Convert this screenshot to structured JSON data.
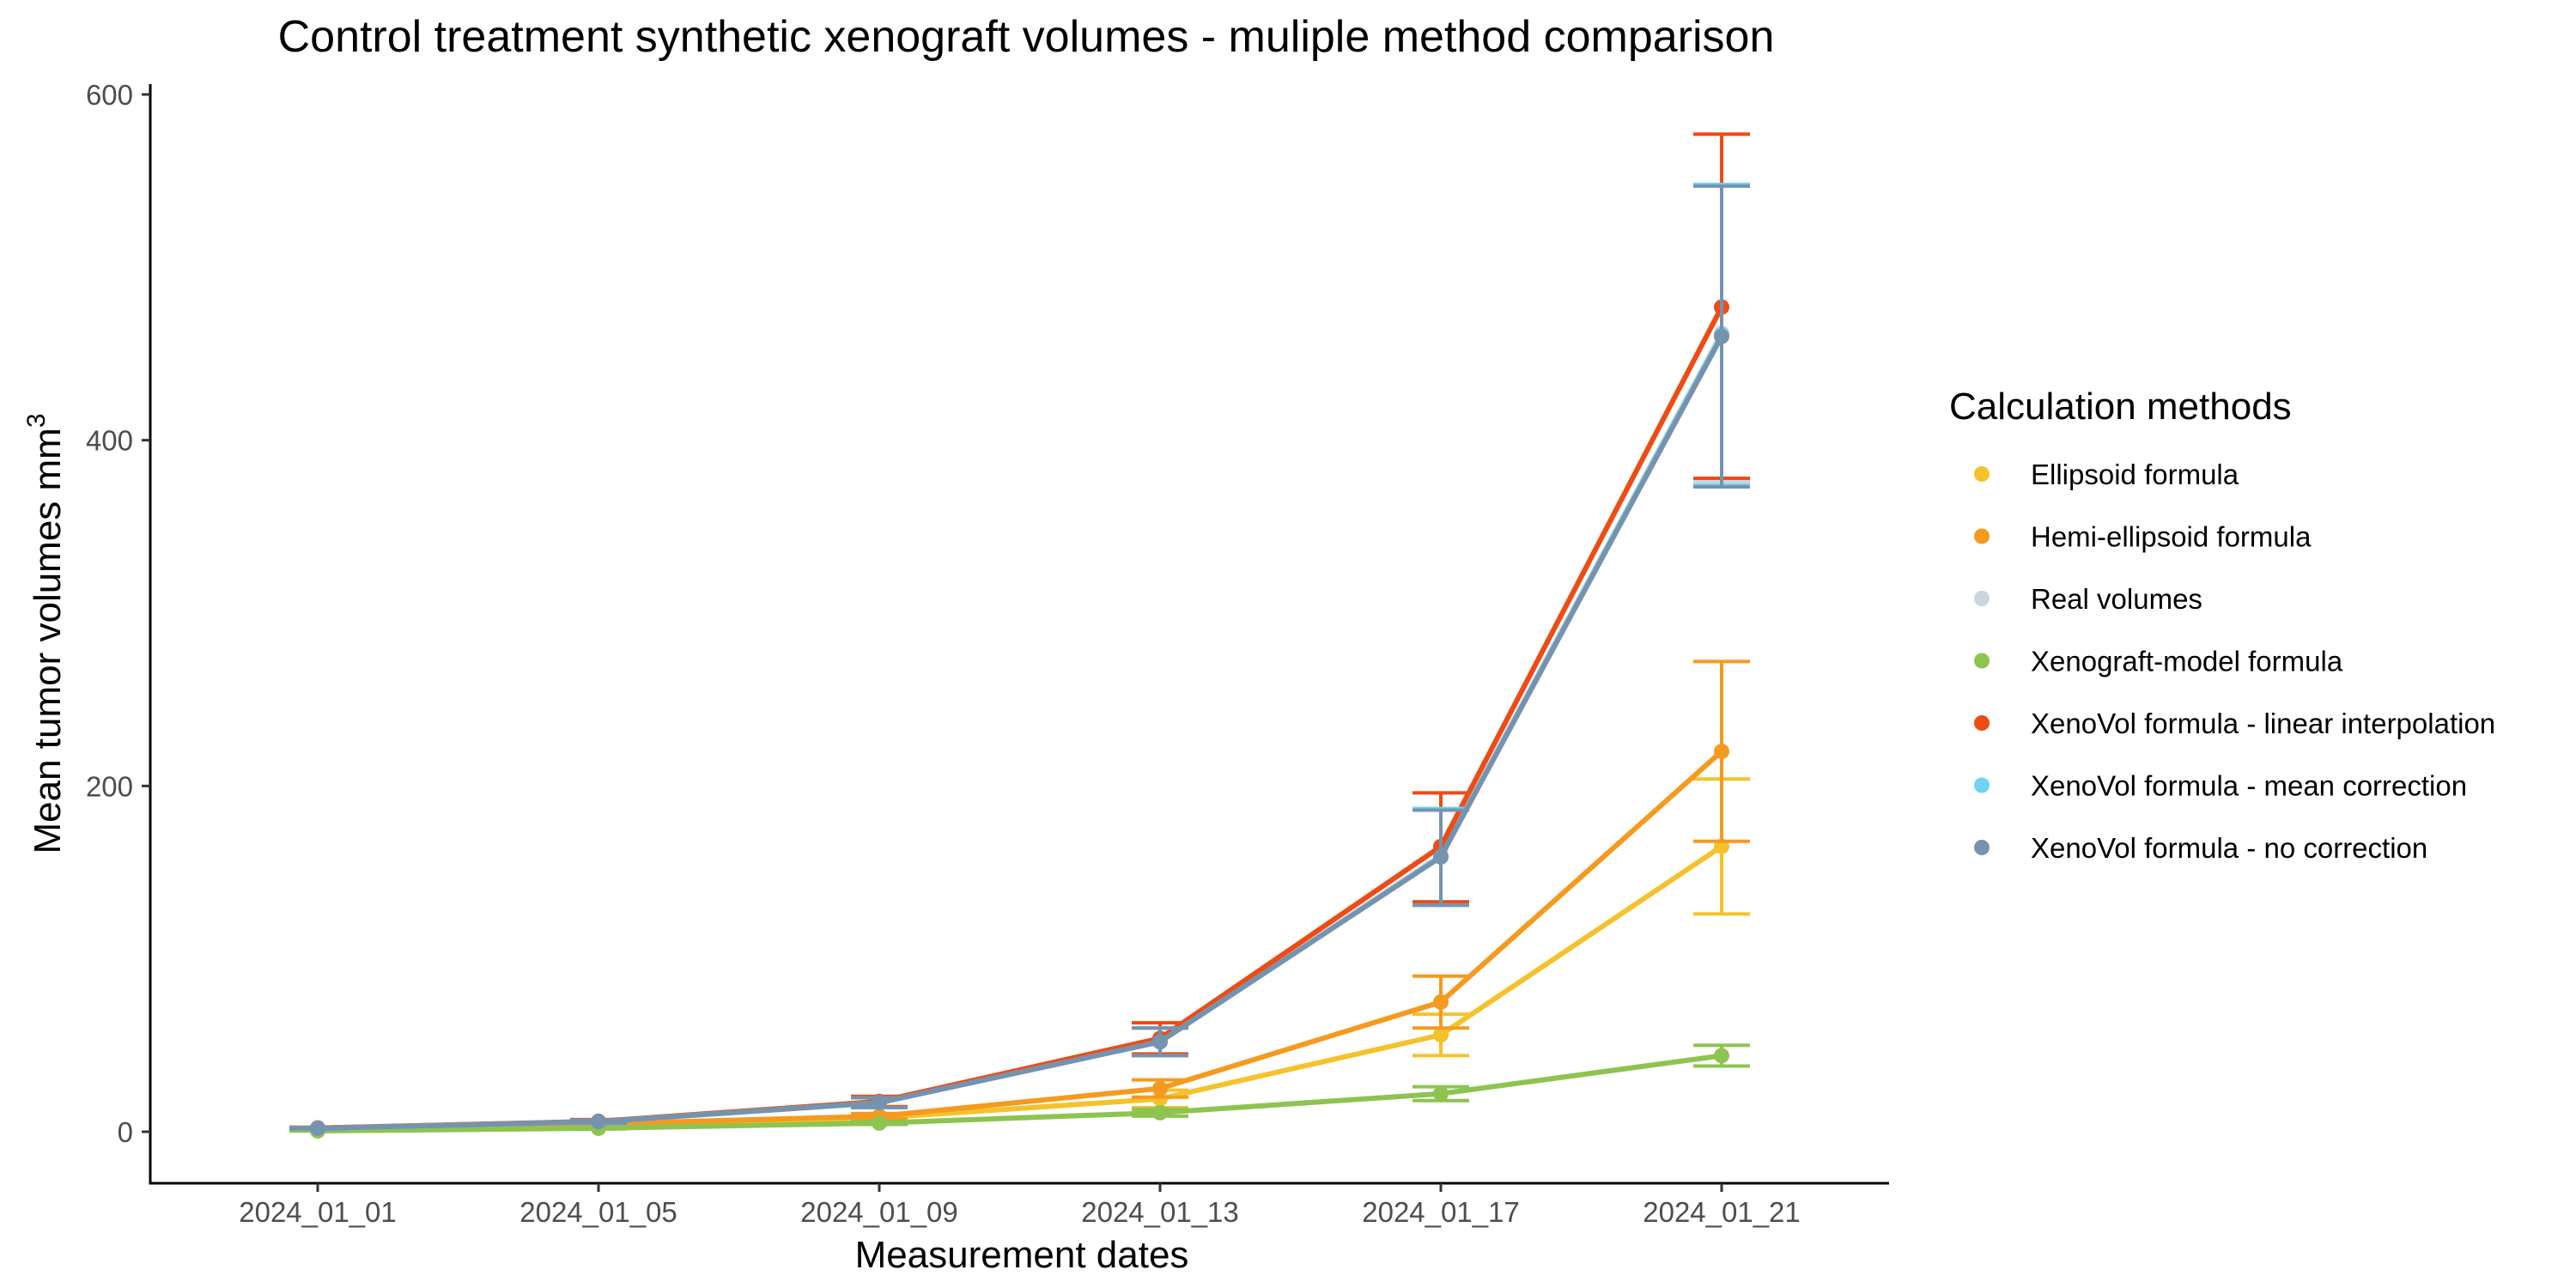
{
  "chart_data": {
    "type": "line",
    "title": "Control treatment synthetic xenograft volumes - muliple method comparison",
    "xlabel": "Measurement dates",
    "ylabel": "Mean tumor volumes mm",
    "ylabel_superscript": "3",
    "categories": [
      "2024_01_01",
      "2024_01_05",
      "2024_01_09",
      "2024_01_13",
      "2024_01_17",
      "2024_01_21"
    ],
    "ylim": [
      -28,
      605
    ],
    "yticks": [
      0,
      200,
      400,
      600
    ],
    "grid": false,
    "legend": {
      "title": "Calculation methods",
      "position": "right"
    },
    "series": [
      {
        "name": "Ellipsoid formula",
        "color": "#F5C22B",
        "values": [
          1.0,
          3.5,
          8.0,
          19.0,
          56.0,
          165.0
        ],
        "error_low": [
          0.8,
          3.0,
          6.8,
          14.0,
          44.0,
          126.0
        ],
        "error_high": [
          1.2,
          4.0,
          9.2,
          24.0,
          68.0,
          204.0
        ]
      },
      {
        "name": "Hemi-ellipsoid formula",
        "color": "#F59A1F",
        "values": [
          1.3,
          4.5,
          9.0,
          25.0,
          75.0,
          220.0
        ],
        "error_low": [
          1.0,
          3.8,
          7.5,
          20.0,
          60.0,
          168.0
        ],
        "error_high": [
          1.6,
          5.2,
          10.5,
          30.0,
          90.0,
          272.0
        ]
      },
      {
        "name": "Real volumes",
        "color": "#C9D6E0",
        "values": [
          2.0,
          6.0,
          17.0,
          52.0,
          160.0,
          462.0
        ],
        "error_low": [
          1.6,
          5.0,
          14.0,
          44.0,
          133.0,
          376.0
        ],
        "error_high": [
          2.4,
          7.0,
          20.0,
          60.0,
          187.0,
          548.0
        ]
      },
      {
        "name": "Xenograft-model formula",
        "color": "#8DC450",
        "values": [
          0.5,
          2.0,
          5.0,
          11.0,
          22.0,
          44.0
        ],
        "error_low": [
          0.4,
          1.6,
          4.2,
          9.0,
          18.0,
          38.0
        ],
        "error_high": [
          0.6,
          2.4,
          5.8,
          13.0,
          26.0,
          50.0
        ]
      },
      {
        "name": "XenoVol formula - linear interpolation",
        "color": "#EE4B15",
        "values": [
          2.2,
          6.0,
          17.5,
          54.0,
          165.0,
          477.0
        ],
        "error_low": [
          1.8,
          5.0,
          14.5,
          45.0,
          133.0,
          378.0
        ],
        "error_high": [
          2.6,
          7.0,
          20.5,
          63.0,
          196.0,
          577.0
        ]
      },
      {
        "name": "XenoVol formula - mean correction",
        "color": "#6FD3F2",
        "values": [
          2.0,
          5.8,
          16.8,
          52.0,
          159.0,
          461.0
        ],
        "error_low": [
          1.6,
          4.9,
          14.0,
          44.0,
          131.0,
          374.0
        ],
        "error_high": [
          2.4,
          6.7,
          19.6,
          60.0,
          187.0,
          548.0
        ]
      },
      {
        "name": "XenoVol formula - no correction",
        "color": "#7593AE",
        "values": [
          2.0,
          5.8,
          16.8,
          52.0,
          159.0,
          460.0
        ],
        "error_low": [
          1.6,
          4.9,
          14.0,
          44.0,
          131.0,
          373.0
        ],
        "error_high": [
          2.4,
          6.7,
          19.6,
          60.0,
          186.0,
          547.0
        ]
      }
    ]
  }
}
